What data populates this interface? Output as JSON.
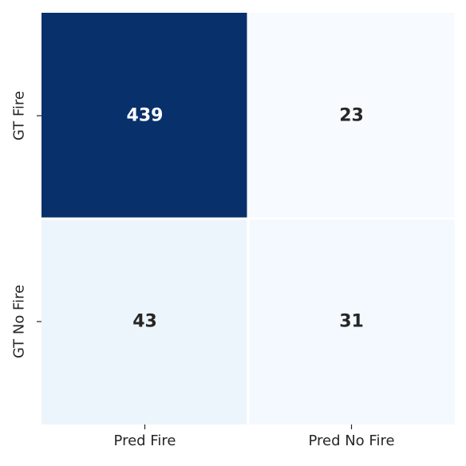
{
  "chart_data": {
    "type": "heatmap",
    "title": "",
    "xlabel": "",
    "ylabel": "",
    "columns": [
      "Pred Fire",
      "Pred No Fire"
    ],
    "rows": [
      "GT Fire",
      "GT No Fire"
    ],
    "values": [
      [
        439,
        23
      ],
      [
        43,
        31
      ]
    ],
    "colormap": "Blues",
    "colorbar": false,
    "grid": false,
    "colors": {
      "low": "#f7fbff",
      "high": "#08306b",
      "text_dark": "#262626",
      "text_light": "#ffffff",
      "cell_border": "#ffffff"
    }
  }
}
